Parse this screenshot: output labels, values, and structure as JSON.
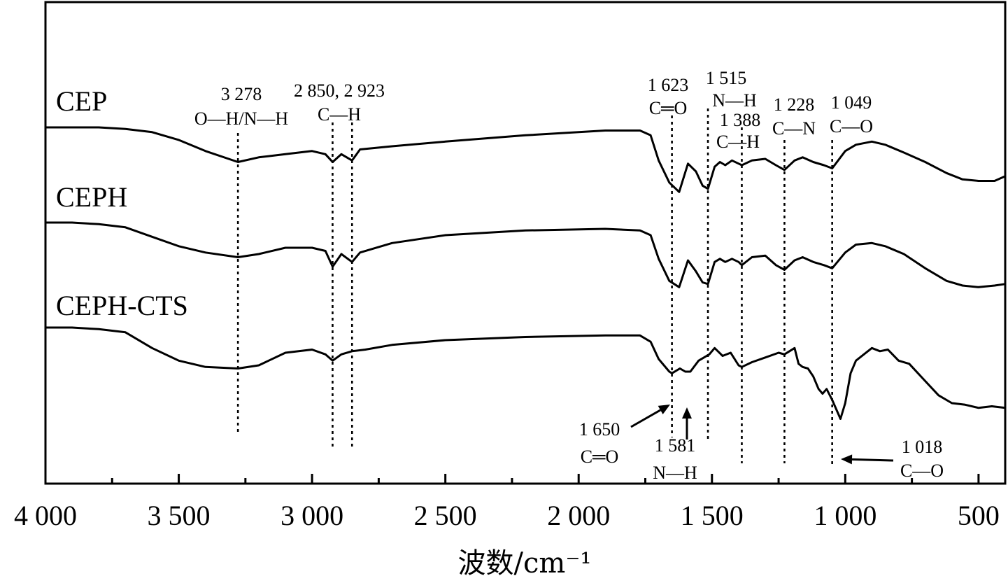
{
  "chart_data": {
    "type": "line",
    "xlabel": "波数/cm⁻¹",
    "ylabel": "",
    "xlim": [
      4000,
      400
    ],
    "x_reversed": true,
    "grid": false,
    "xticks": [
      4000,
      3500,
      3000,
      2500,
      2000,
      1500,
      1000,
      500
    ],
    "xtick_labels": [
      "4 000",
      "3 500",
      "3 000",
      "2 500",
      "2 000",
      "1 500",
      "1 000",
      "500"
    ],
    "series": [
      {
        "name": "CEP",
        "points": [
          [
            4000,
            0.77
          ],
          [
            3900,
            0.77
          ],
          [
            3800,
            0.77
          ],
          [
            3700,
            0.76
          ],
          [
            3600,
            0.74
          ],
          [
            3500,
            0.69
          ],
          [
            3400,
            0.62
          ],
          [
            3278,
            0.55
          ],
          [
            3200,
            0.58
          ],
          [
            3100,
            0.6
          ],
          [
            3000,
            0.62
          ],
          [
            2950,
            0.6
          ],
          [
            2923,
            0.55
          ],
          [
            2890,
            0.6
          ],
          [
            2850,
            0.56
          ],
          [
            2820,
            0.63
          ],
          [
            2700,
            0.65
          ],
          [
            2500,
            0.68
          ],
          [
            2200,
            0.72
          ],
          [
            1900,
            0.75
          ],
          [
            1770,
            0.75
          ],
          [
            1730,
            0.72
          ],
          [
            1700,
            0.56
          ],
          [
            1660,
            0.42
          ],
          [
            1623,
            0.36
          ],
          [
            1590,
            0.54
          ],
          [
            1560,
            0.49
          ],
          [
            1535,
            0.4
          ],
          [
            1515,
            0.38
          ],
          [
            1490,
            0.52
          ],
          [
            1470,
            0.55
          ],
          [
            1450,
            0.53
          ],
          [
            1425,
            0.56
          ],
          [
            1400,
            0.54
          ],
          [
            1388,
            0.53
          ],
          [
            1350,
            0.56
          ],
          [
            1300,
            0.57
          ],
          [
            1260,
            0.53
          ],
          [
            1228,
            0.5
          ],
          [
            1190,
            0.56
          ],
          [
            1160,
            0.58
          ],
          [
            1120,
            0.55
          ],
          [
            1080,
            0.53
          ],
          [
            1049,
            0.51
          ],
          [
            1000,
            0.62
          ],
          [
            960,
            0.66
          ],
          [
            900,
            0.68
          ],
          [
            850,
            0.66
          ],
          [
            780,
            0.61
          ],
          [
            700,
            0.55
          ],
          [
            620,
            0.48
          ],
          [
            560,
            0.44
          ],
          [
            500,
            0.43
          ],
          [
            440,
            0.43
          ],
          [
            400,
            0.46
          ]
        ]
      },
      {
        "name": "CEPH",
        "points": [
          [
            4000,
            0.43
          ],
          [
            3900,
            0.43
          ],
          [
            3800,
            0.42
          ],
          [
            3700,
            0.4
          ],
          [
            3600,
            0.34
          ],
          [
            3500,
            0.28
          ],
          [
            3400,
            0.24
          ],
          [
            3278,
            0.21
          ],
          [
            3200,
            0.23
          ],
          [
            3100,
            0.27
          ],
          [
            3000,
            0.27
          ],
          [
            2950,
            0.25
          ],
          [
            2923,
            0.15
          ],
          [
            2890,
            0.23
          ],
          [
            2850,
            0.18
          ],
          [
            2820,
            0.24
          ],
          [
            2700,
            0.3
          ],
          [
            2500,
            0.35
          ],
          [
            2200,
            0.38
          ],
          [
            1900,
            0.39
          ],
          [
            1770,
            0.38
          ],
          [
            1730,
            0.35
          ],
          [
            1700,
            0.2
          ],
          [
            1660,
            0.06
          ],
          [
            1623,
            0.02
          ],
          [
            1590,
            0.19
          ],
          [
            1560,
            0.12
          ],
          [
            1535,
            0.05
          ],
          [
            1515,
            0.04
          ],
          [
            1490,
            0.18
          ],
          [
            1470,
            0.2
          ],
          [
            1450,
            0.18
          ],
          [
            1425,
            0.2
          ],
          [
            1400,
            0.18
          ],
          [
            1388,
            0.16
          ],
          [
            1350,
            0.21
          ],
          [
            1300,
            0.22
          ],
          [
            1260,
            0.16
          ],
          [
            1228,
            0.13
          ],
          [
            1190,
            0.19
          ],
          [
            1160,
            0.21
          ],
          [
            1120,
            0.18
          ],
          [
            1080,
            0.16
          ],
          [
            1049,
            0.14
          ],
          [
            1000,
            0.24
          ],
          [
            960,
            0.29
          ],
          [
            900,
            0.3
          ],
          [
            850,
            0.28
          ],
          [
            780,
            0.23
          ],
          [
            700,
            0.14
          ],
          [
            620,
            0.06
          ],
          [
            560,
            0.03
          ],
          [
            500,
            0.02
          ],
          [
            440,
            0.03
          ],
          [
            400,
            0.04
          ]
        ]
      },
      {
        "name": "CEPH-CTS",
        "points": [
          [
            4000,
            0.05
          ],
          [
            3900,
            0.05
          ],
          [
            3800,
            0.04
          ],
          [
            3700,
            0.02
          ],
          [
            3600,
            -0.08
          ],
          [
            3500,
            -0.16
          ],
          [
            3400,
            -0.2
          ],
          [
            3278,
            -0.21
          ],
          [
            3200,
            -0.19
          ],
          [
            3100,
            -0.11
          ],
          [
            3000,
            -0.09
          ],
          [
            2950,
            -0.12
          ],
          [
            2923,
            -0.16
          ],
          [
            2890,
            -0.12
          ],
          [
            2850,
            -0.1
          ],
          [
            2800,
            -0.09
          ],
          [
            2700,
            -0.06
          ],
          [
            2500,
            -0.03
          ],
          [
            2200,
            -0.01
          ],
          [
            1900,
            0.0
          ],
          [
            1770,
            0.0
          ],
          [
            1730,
            -0.04
          ],
          [
            1700,
            -0.15
          ],
          [
            1660,
            -0.23
          ],
          [
            1650,
            -0.24
          ],
          [
            1620,
            -0.21
          ],
          [
            1600,
            -0.23
          ],
          [
            1581,
            -0.23
          ],
          [
            1550,
            -0.16
          ],
          [
            1510,
            -0.12
          ],
          [
            1490,
            -0.08
          ],
          [
            1460,
            -0.13
          ],
          [
            1430,
            -0.11
          ],
          [
            1400,
            -0.19
          ],
          [
            1388,
            -0.2
          ],
          [
            1350,
            -0.17
          ],
          [
            1300,
            -0.14
          ],
          [
            1250,
            -0.11
          ],
          [
            1228,
            -0.12
          ],
          [
            1190,
            -0.08
          ],
          [
            1175,
            -0.18
          ],
          [
            1160,
            -0.2
          ],
          [
            1140,
            -0.21
          ],
          [
            1120,
            -0.26
          ],
          [
            1100,
            -0.34
          ],
          [
            1085,
            -0.37
          ],
          [
            1070,
            -0.34
          ],
          [
            1049,
            -0.41
          ],
          [
            1018,
            -0.53
          ],
          [
            1000,
            -0.43
          ],
          [
            980,
            -0.24
          ],
          [
            960,
            -0.16
          ],
          [
            900,
            -0.08
          ],
          [
            870,
            -0.1
          ],
          [
            840,
            -0.09
          ],
          [
            800,
            -0.16
          ],
          [
            760,
            -0.18
          ],
          [
            700,
            -0.29
          ],
          [
            650,
            -0.38
          ],
          [
            600,
            -0.43
          ],
          [
            550,
            -0.44
          ],
          [
            500,
            -0.46
          ],
          [
            450,
            -0.45
          ],
          [
            400,
            -0.46
          ]
        ]
      }
    ],
    "reference_lines": [
      3278,
      2923,
      2850,
      1650,
      1515,
      1388,
      1228,
      1049
    ],
    "annotations": [
      {
        "wavenumber": "3 278",
        "group": "O—H/N—H"
      },
      {
        "wavenumber": "2 850, 2 923",
        "group": "C—H"
      },
      {
        "wavenumber": "1 623",
        "group": "C═O"
      },
      {
        "wavenumber": "1 515",
        "group": "N—H"
      },
      {
        "wavenumber": "1 388",
        "group": "C—H"
      },
      {
        "wavenumber": "1 228",
        "group": "C—N"
      },
      {
        "wavenumber": "1 049",
        "group": "C—O"
      },
      {
        "wavenumber": "1 650",
        "group": "C═O",
        "arrow_to": 1650
      },
      {
        "wavenumber": "1 581",
        "group": "N—H",
        "arrow_to": 1581
      },
      {
        "wavenumber": "1 018",
        "group": "C—O",
        "arrow_to": 1018
      }
    ]
  }
}
